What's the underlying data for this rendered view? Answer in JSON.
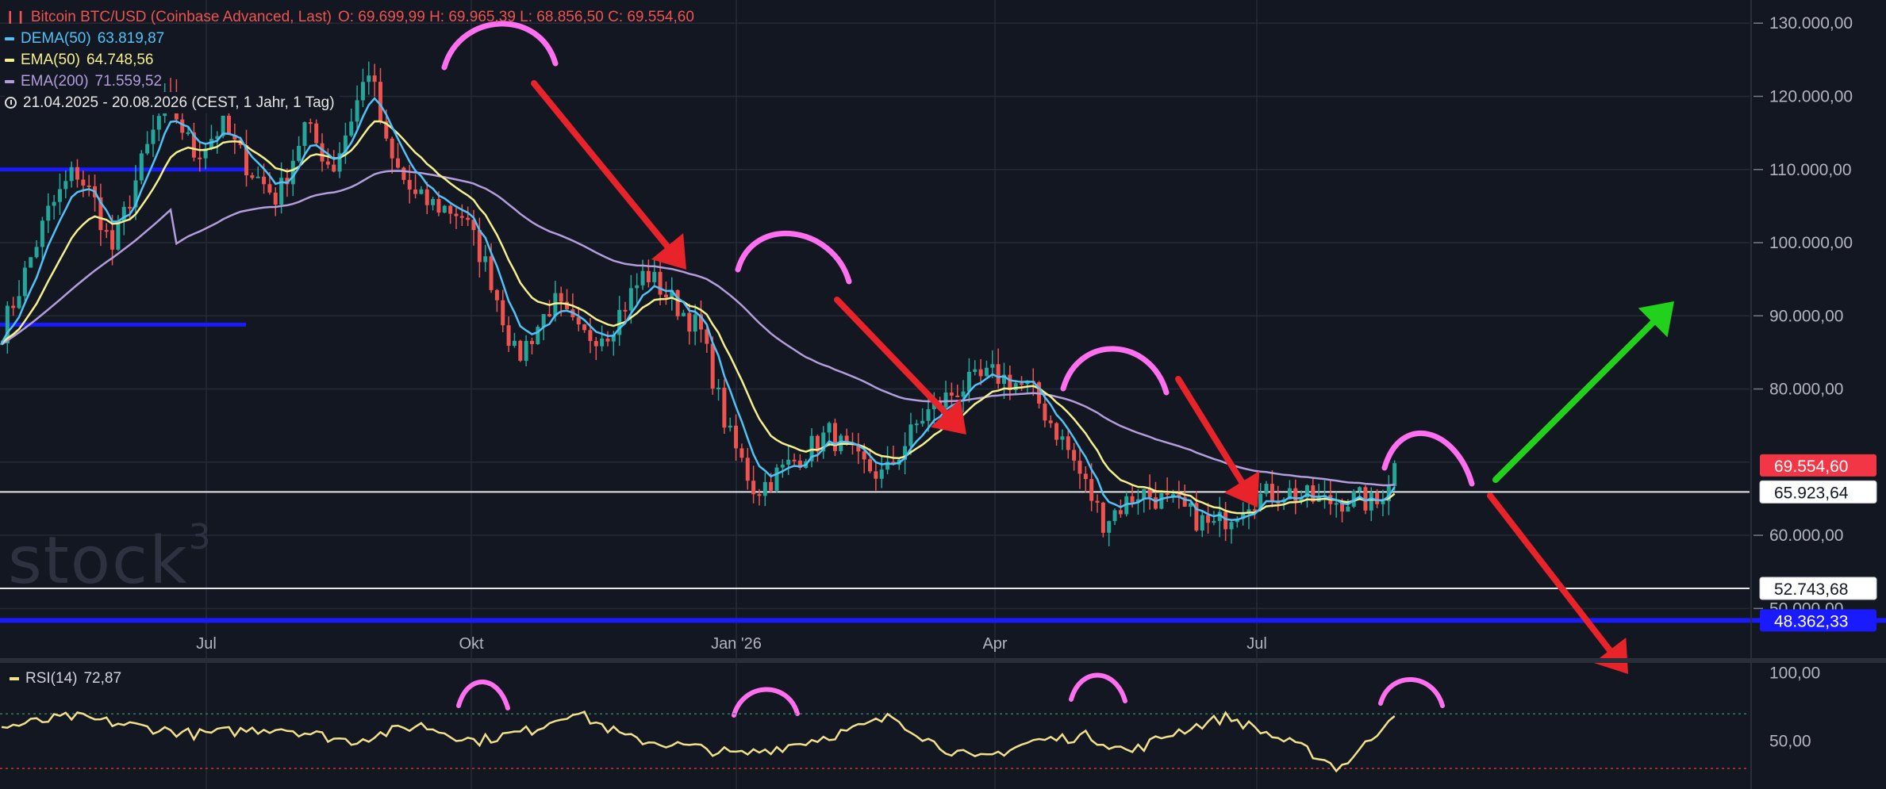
{
  "header": {
    "title": "Bitcoin BTC/USD (Coinbase Advanced, Last)",
    "ohlc": "O: 69.699,99  H: 69.965,39  L: 68.856,50  C: 69.554,60",
    "range": "21.04.2025 - 20.08.2026   (CEST, 1 Jahr, 1 Tag)"
  },
  "indicators": [
    {
      "label": "DEMA(50)",
      "value": "63.819,87",
      "color": "#4fc3f7"
    },
    {
      "label": "EMA(50)",
      "value": "64.748,56",
      "color": "#f5f08c"
    },
    {
      "label": "EMA(200)",
      "value": "71.559,52",
      "color": "#b39ddb"
    }
  ],
  "rsi": {
    "label": "RSI(14)",
    "value": "72,87",
    "color": "#f2e08a"
  },
  "watermark": {
    "text": "stock",
    "sup": "3"
  },
  "colors": {
    "up": "#26a69a",
    "down": "#ef5350",
    "background": "#131722",
    "grid": "#242a38"
  },
  "chart_data": {
    "type": "candlestick",
    "x_ticks": [
      "Jul",
      "Okt",
      "Jan '26",
      "Apr",
      "Jul"
    ],
    "y_ticks": [
      "130.000,00",
      "120.000,00",
      "110.000,00",
      "100.000,00",
      "90.000,00",
      "80.000,00",
      "60.000,00",
      "50.000,00"
    ],
    "ylim": [
      47000,
      131000
    ],
    "price_labels": [
      {
        "text": "69.554,60",
        "value": 69554.6,
        "style": "last"
      },
      {
        "text": "65.923,64",
        "value": 65923.64,
        "style": "line"
      },
      {
        "text": "52.743,68",
        "value": 52743.68,
        "style": "line"
      },
      {
        "text": "48.362,33",
        "value": 48362.33,
        "style": "blue"
      }
    ],
    "blue_lines": [
      110000,
      88800
    ],
    "rsi_ticks": [
      "100,00",
      "50,00"
    ],
    "rsi_levels": [
      70,
      30
    ],
    "series_anchors": {
      "close": [
        [
          0,
          88000
        ],
        [
          0.02,
          94000
        ],
        [
          0.05,
          104000
        ],
        [
          0.08,
          110000
        ],
        [
          0.1,
          106000
        ],
        [
          0.12,
          99000
        ],
        [
          0.15,
          110000
        ],
        [
          0.18,
          120000
        ],
        [
          0.21,
          112000
        ],
        [
          0.24,
          116000
        ],
        [
          0.27,
          110000
        ],
        [
          0.3,
          106000
        ],
        [
          0.33,
          116000
        ],
        [
          0.36,
          110000
        ],
        [
          0.4,
          124000
        ],
        [
          0.42,
          112000
        ],
        [
          0.45,
          106000
        ],
        [
          0.5,
          104000
        ],
        [
          0.53,
          96000
        ],
        [
          0.56,
          84000
        ],
        [
          0.6,
          92000
        ],
        [
          0.63,
          87000
        ],
        [
          0.66,
          88000
        ],
        [
          0.7,
          96000
        ],
        [
          0.73,
          92000
        ],
        [
          0.76,
          88000
        ],
        [
          0.79,
          74000
        ],
        [
          0.82,
          66000
        ],
        [
          0.86,
          70000
        ],
        [
          0.9,
          74000
        ],
        [
          0.93,
          70000
        ],
        [
          0.96,
          68000
        ],
        [
          1.0,
          76000
        ]
      ],
      "close2": [
        [
          0,
          76000
        ],
        [
          0.04,
          80000
        ],
        [
          0.08,
          82000
        ],
        [
          0.12,
          80000
        ],
        [
          0.16,
          72000
        ],
        [
          0.2,
          62000
        ],
        [
          0.24,
          66000
        ],
        [
          0.28,
          64000
        ],
        [
          0.32,
          61000
        ],
        [
          0.36,
          65000
        ],
        [
          0.4,
          66000
        ],
        [
          0.44,
          64500
        ],
        [
          0.48,
          65000
        ],
        [
          0.5,
          64000
        ],
        [
          0.52,
          69500
        ]
      ],
      "rsi": [
        [
          0,
          60
        ],
        [
          0.05,
          68
        ],
        [
          0.09,
          62
        ],
        [
          0.14,
          55
        ],
        [
          0.2,
          60
        ],
        [
          0.25,
          50
        ],
        [
          0.3,
          62
        ],
        [
          0.34,
          50
        ],
        [
          0.38,
          58
        ],
        [
          0.41,
          72
        ],
        [
          0.45,
          52
        ],
        [
          0.5,
          45
        ],
        [
          0.53,
          40
        ],
        [
          0.57,
          48
        ],
        [
          0.61,
          58
        ],
        [
          0.64,
          68
        ],
        [
          0.67,
          48
        ],
        [
          0.7,
          36
        ],
        [
          0.74,
          50
        ],
        [
          0.78,
          54
        ],
        [
          0.81,
          42
        ],
        [
          0.84,
          56
        ],
        [
          0.88,
          68
        ],
        [
          0.91,
          55
        ],
        [
          0.94,
          42
        ],
        [
          0.96,
          30
        ],
        [
          0.98,
          48
        ],
        [
          1.0,
          72
        ]
      ]
    },
    "annotations": {
      "arches": 8,
      "arrows": [
        {
          "direction": "down",
          "color": "#e8232a"
        },
        {
          "direction": "down",
          "color": "#e8232a"
        },
        {
          "direction": "down",
          "color": "#e8232a"
        },
        {
          "direction": "up",
          "color": "#22d11c"
        },
        {
          "direction": "down",
          "color": "#e8232a"
        }
      ]
    }
  }
}
